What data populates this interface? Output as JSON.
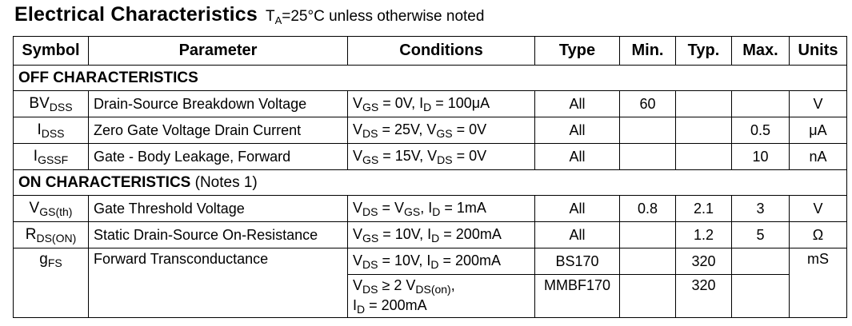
{
  "title": {
    "main": "Electrical Characteristics",
    "note_prefix": "T",
    "note_sub": "A",
    "note_suffix": "=25°C unless otherwise noted"
  },
  "headers": {
    "symbol": "Symbol",
    "parameter": "Parameter",
    "conditions": "Conditions",
    "type": "Type",
    "min": "Min.",
    "typ": "Typ.",
    "max": "Max.",
    "units": "Units"
  },
  "sections": {
    "off": {
      "label": "OFF CHARACTERISTICS"
    },
    "on": {
      "label": "ON CHARACTERISTICS",
      "notes": "(Notes 1)"
    }
  },
  "rows": {
    "bvdss": {
      "sym_main": "BV",
      "sym_sub": "DSS",
      "parameter": "Drain-Source Breakdown Voltage",
      "c1": "V",
      "c1s": "GS",
      "c2": " = 0V, I",
      "c2s": "D",
      "c3": " = 100μA",
      "type": "All",
      "min": "60",
      "typ": "",
      "max": "",
      "units": "V"
    },
    "idss": {
      "sym_main": "I",
      "sym_sub": "DSS",
      "parameter": "Zero Gate Voltage Drain Current",
      "c1": "V",
      "c1s": "DS",
      "c2": " = 25V, V",
      "c2s": "GS",
      "c3": " = 0V",
      "type": "All",
      "min": "",
      "typ": "",
      "max": "0.5",
      "units": "μA"
    },
    "igssf": {
      "sym_main": "I",
      "sym_sub": "GSSF",
      "parameter": "Gate - Body Leakage, Forward",
      "c1": "V",
      "c1s": "GS",
      "c2": " = 15V, V",
      "c2s": "DS",
      "c3": " = 0V",
      "type": "All",
      "min": "",
      "typ": "",
      "max": "10",
      "units": "nA"
    },
    "vgsth": {
      "sym_main": "V",
      "sym_sub": "GS(th)",
      "parameter": "Gate Threshold Voltage",
      "c1": "V",
      "c1s": "DS",
      "c2": " = V",
      "c2s": "GS",
      "c3": ", I",
      "c3s": "D",
      "c4": " = 1mA",
      "type": "All",
      "min": "0.8",
      "typ": "2.1",
      "max": "3",
      "units": "V"
    },
    "rdson": {
      "sym_main": "R",
      "sym_sub": "DS(ON)",
      "parameter": "Static Drain-Source On-Resistance",
      "c1": "V",
      "c1s": "GS",
      "c2": " = 10V, I",
      "c2s": "D",
      "c3": " = 200mA",
      "type": "All",
      "min": "",
      "typ": "1.2",
      "max": "5",
      "units": "Ω"
    },
    "gfs": {
      "sym_main": "g",
      "sym_sub": "FS",
      "parameter": "Forward Transconductance",
      "units": "mS",
      "a": {
        "c1": "V",
        "c1s": "DS",
        "c2": " = 10V, I",
        "c2s": "D",
        "c3": " = 200mA",
        "type": "BS170",
        "min": "",
        "typ": "320",
        "max": ""
      },
      "b": {
        "c1": "V",
        "c1s": "DS",
        "c2": "  ≥ 2 V",
        "c2s": "DS(on)",
        "c3": ",",
        "c4": "I",
        "c4s": "D",
        "c5": " = 200mA",
        "type": "MMBF170",
        "min": "",
        "typ": "320",
        "max": ""
      }
    }
  }
}
